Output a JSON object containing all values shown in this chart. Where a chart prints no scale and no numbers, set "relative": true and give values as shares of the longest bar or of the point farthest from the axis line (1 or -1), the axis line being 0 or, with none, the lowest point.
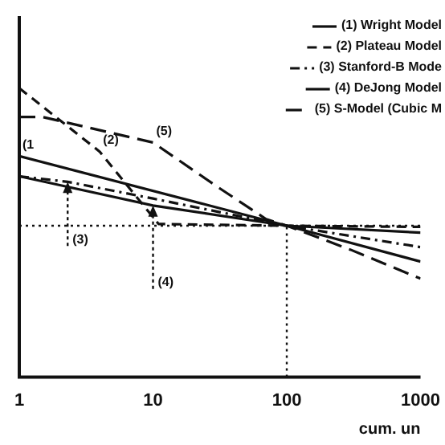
{
  "chart_data": {
    "type": "line",
    "relative": true,
    "log": "x",
    "xlabel": "cum. un",
    "xlim": [
      1,
      1000
    ],
    "xticks": [
      1,
      10,
      100,
      1000
    ],
    "grid": false,
    "legend": "top right",
    "marker": "none",
    "series": [
      {
        "name": "(1) Wright Model",
        "color": "#111111",
        "line_style": "solid",
        "x": [
          1,
          100,
          1000
        ],
        "values": [
          0.765,
          0.524,
          0.4
        ]
      },
      {
        "name": "(2) Plateau Model",
        "color": "#111111",
        "line_style": "dashed",
        "x": [
          1,
          4,
          11,
          100,
          1000
        ],
        "values": [
          1.0,
          0.78,
          0.53,
          0.524,
          0.52
        ]
      },
      {
        "name": "(3) Stanford-B Mode",
        "color": "#111111",
        "line_style": "dashdot",
        "x": [
          1,
          2.3,
          10,
          100,
          1000
        ],
        "values": [
          0.695,
          0.676,
          0.618,
          0.524,
          0.45
        ]
      },
      {
        "name": "(4) DeJong Model",
        "color": "#111111",
        "line_style": "solid",
        "x": [
          1,
          10,
          100,
          1000
        ],
        "values": [
          0.695,
          0.594,
          0.524,
          0.5
        ]
      },
      {
        "name": "(5) S-Model (Cubic M",
        "color": "#111111",
        "line_style": "longdash",
        "x": [
          1,
          1.5,
          10,
          30,
          70,
          100,
          300,
          1000
        ],
        "values": [
          0.9,
          0.9,
          0.812,
          0.66,
          0.547,
          0.524,
          0.441,
          0.341
        ]
      }
    ],
    "ref_lines": [
      {
        "axis": "x",
        "value": 100,
        "line_style": "dotted"
      },
      {
        "axis": "y",
        "value": 0.524,
        "line_style": "dotted"
      }
    ],
    "annotations": [
      {
        "text": "(1",
        "x": 1,
        "y": 0.765
      },
      {
        "text": "(2)",
        "x": 4,
        "y": 0.78
      },
      {
        "text": "(5)",
        "x": 10,
        "y": 0.812
      },
      {
        "text": "(3)",
        "x": 2.3,
        "y": 0.676
      },
      {
        "text": "(4)",
        "x": 10,
        "y": 0.594
      }
    ]
  }
}
